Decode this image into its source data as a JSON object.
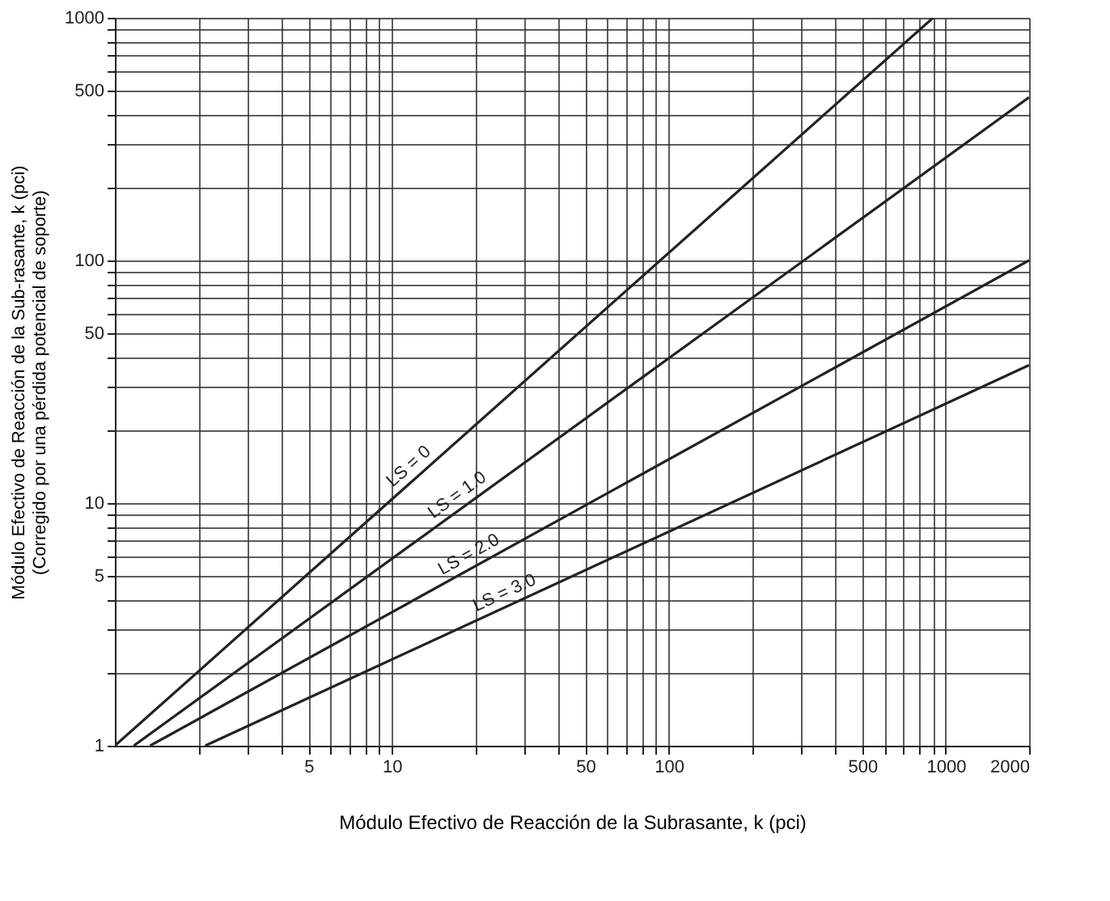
{
  "chart_data": {
    "type": "line",
    "xlabel": "Módulo Efectivo de Reacción de la Subrasante, k (pci)",
    "ylabel": "Módulo Efectivo de Reacción de la Sub-rasante, k (pci)\n(Corregido por una pérdida potencial de soporte)",
    "log": "xy",
    "grid": true,
    "legend": false,
    "marker": "none",
    "line_style": "solid",
    "xlim": [
      1,
      2000
    ],
    "ylim": [
      1,
      1000
    ],
    "xticks": [
      {
        "value": 2,
        "label": null
      },
      {
        "value": 3,
        "label": null
      },
      {
        "value": 4,
        "label": null
      },
      5,
      {
        "value": 6,
        "label": null
      },
      {
        "value": 7,
        "label": null
      },
      {
        "value": 8,
        "label": null
      },
      {
        "value": 9,
        "label": null
      },
      10,
      {
        "value": 20,
        "label": null
      },
      {
        "value": 30,
        "label": null
      },
      {
        "value": 40,
        "label": null
      },
      50,
      {
        "value": 60,
        "label": null
      },
      {
        "value": 70,
        "label": null
      },
      {
        "value": 80,
        "label": null
      },
      {
        "value": 90,
        "label": null
      },
      100,
      {
        "value": 200,
        "label": null
      },
      {
        "value": 300,
        "label": null
      },
      {
        "value": 400,
        "label": null
      },
      500,
      {
        "value": 600,
        "label": null
      },
      {
        "value": 700,
        "label": null
      },
      {
        "value": 800,
        "label": null
      },
      {
        "value": 900,
        "label": null
      },
      1000,
      2000
    ],
    "yticks": [
      1,
      {
        "value": 2,
        "label": null
      },
      {
        "value": 3,
        "label": null
      },
      {
        "value": 4,
        "label": null
      },
      5,
      {
        "value": 6,
        "label": null
      },
      {
        "value": 7,
        "label": null
      },
      {
        "value": 8,
        "label": null
      },
      {
        "value": 9,
        "label": null
      },
      10,
      {
        "value": 20,
        "label": null
      },
      {
        "value": 30,
        "label": null
      },
      {
        "value": 40,
        "label": null
      },
      50,
      {
        "value": 60,
        "label": null
      },
      {
        "value": 70,
        "label": null
      },
      {
        "value": 80,
        "label": null
      },
      {
        "value": 90,
        "label": null
      },
      100,
      {
        "value": 200,
        "label": null
      },
      {
        "value": 300,
        "label": null
      },
      {
        "value": 400,
        "label": null
      },
      500,
      {
        "value": 600,
        "label": null
      },
      {
        "value": 700,
        "label": null
      },
      {
        "value": 800,
        "label": null
      },
      {
        "value": 900,
        "label": null
      },
      1000
    ],
    "series": [
      {
        "color": "#222222",
        "x": [
          1,
          900
        ],
        "values": [
          1,
          1000
        ]
      },
      {
        "color": "#222222",
        "x": [
          1.17,
          2000
        ],
        "values": [
          1,
          470
        ]
      },
      {
        "color": "#222222",
        "x": [
          1.34,
          2000
        ],
        "values": [
          1,
          100
        ]
      },
      {
        "color": "#222222",
        "x": [
          2.12,
          2000
        ],
        "values": [
          1,
          37
        ]
      }
    ],
    "annotations": [
      "LS = 0",
      "LS = 1.0",
      "LS = 2.0",
      "LS = 3.0"
    ]
  }
}
